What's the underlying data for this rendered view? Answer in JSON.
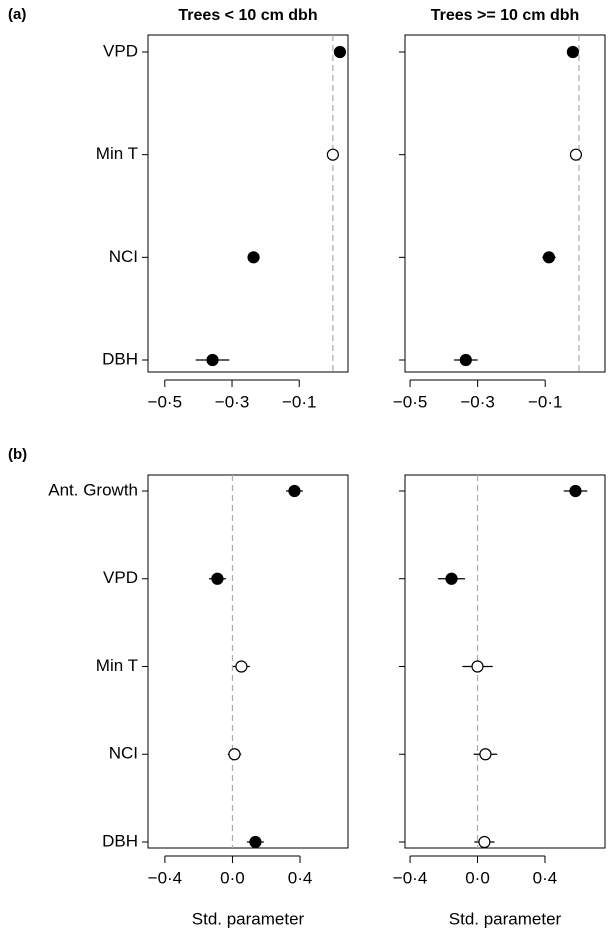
{
  "chart_data": [
    {
      "type": "forest",
      "panel_label": "(a)",
      "title": "Trees < 10 cm dbh",
      "categories": [
        "VPD",
        "Min T",
        "NCI",
        "DBH"
      ],
      "values": [
        0.021,
        0.0,
        -0.236,
        -0.358
      ],
      "errors": [
        0.012,
        0.01,
        0.018,
        0.05
      ],
      "filled": [
        true,
        false,
        true,
        true
      ],
      "color": "#000000",
      "refline": 0,
      "xlim": [
        -0.55,
        0.045
      ],
      "xticks": [
        {
          "value": -0.5,
          "label": "−0·5"
        },
        {
          "value": -0.3,
          "label": "−0·3"
        },
        {
          "value": -0.1,
          "label": "−0·1"
        }
      ]
    },
    {
      "type": "forest",
      "title": "Trees >= 10 cm dbh",
      "categories": [
        "VPD",
        "Min T",
        "NCI",
        "DBH"
      ],
      "values": [
        -0.018,
        -0.009,
        -0.089,
        -0.335
      ],
      "errors": [
        0.012,
        0.01,
        0.02,
        0.035
      ],
      "filled": [
        true,
        false,
        true,
        true
      ],
      "color": "#000000",
      "refline": 0,
      "xlim": [
        -0.515,
        0.077
      ],
      "xticks": [
        {
          "value": -0.5,
          "label": "−0·5"
        },
        {
          "value": -0.3,
          "label": "−0·3"
        },
        {
          "value": -0.1,
          "label": "−0·1"
        }
      ]
    },
    {
      "type": "forest",
      "panel_label": "(b)",
      "x_label": "Std. parameter",
      "categories": [
        "Ant. Growth",
        "VPD",
        "Min T",
        "NCI",
        "DBH"
      ],
      "values": [
        0.367,
        -0.089,
        0.053,
        0.012,
        0.136
      ],
      "errors": [
        0.05,
        0.05,
        0.05,
        0.04,
        0.05
      ],
      "filled": [
        true,
        true,
        false,
        false,
        true
      ],
      "color": "#000000",
      "refline": 0,
      "xlim": [
        -0.5,
        0.684
      ],
      "xticks": [
        {
          "value": -0.4,
          "label": "−0·4"
        },
        {
          "value": 0.0,
          "label": "0·0"
        },
        {
          "value": 0.4,
          "label": "0·4"
        }
      ]
    },
    {
      "type": "forest",
      "x_label": "Std. parameter",
      "categories": [
        "Ant. Growth",
        "VPD",
        "Min T",
        "NCI",
        "DBH"
      ],
      "values": [
        0.581,
        -0.154,
        0.0,
        0.047,
        0.041
      ],
      "errors": [
        0.07,
        0.08,
        0.09,
        0.07,
        0.06
      ],
      "filled": [
        true,
        true,
        false,
        false,
        false
      ],
      "color": "#000000",
      "refline": 0,
      "xlim": [
        -0.43,
        0.756
      ],
      "xticks": [
        {
          "value": -0.4,
          "label": "−0·4"
        },
        {
          "value": 0.0,
          "label": "0·0"
        },
        {
          "value": 0.4,
          "label": "0·4"
        }
      ]
    }
  ]
}
